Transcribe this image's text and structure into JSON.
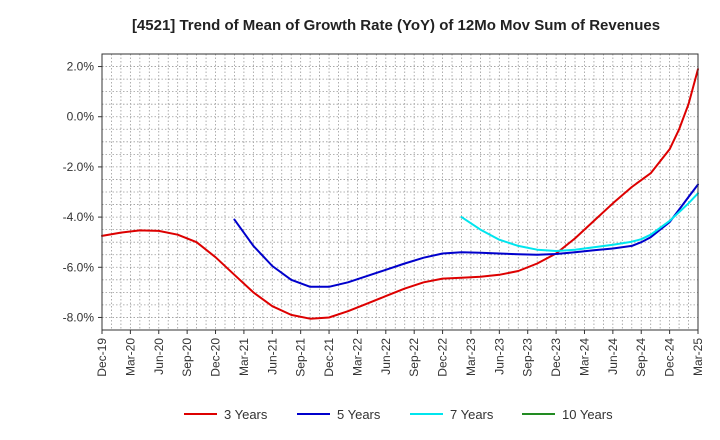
{
  "chart_data": {
    "type": "line",
    "title": "[4521]  Trend of Mean of Growth Rate (YoY) of 12Mo Mov Sum of Revenues",
    "xlabel": "",
    "ylabel": "",
    "x_ticks": [
      "Dec-19",
      "Mar-20",
      "Jun-20",
      "Sep-20",
      "Dec-20",
      "Mar-21",
      "Jun-21",
      "Sep-21",
      "Dec-21",
      "Mar-22",
      "Jun-22",
      "Sep-22",
      "Dec-22",
      "Mar-23",
      "Jun-23",
      "Sep-23",
      "Dec-23",
      "Mar-24",
      "Jun-24",
      "Sep-24",
      "Dec-24",
      "Mar-25"
    ],
    "y_ticks": [
      "2.0%",
      "0.0%",
      "-2.0%",
      "-4.0%",
      "-6.0%",
      "-8.0%"
    ],
    "y_tick_values": [
      2,
      0,
      -2,
      -4,
      -6,
      -8
    ],
    "ylim": [
      -8.5,
      2.5
    ],
    "x_range_months": [
      0,
      63
    ],
    "grid": true,
    "legend_position": "bottom",
    "series": [
      {
        "name": "3 Years",
        "color": "#dd0000",
        "x": [
          0,
          2,
          4,
          6,
          8,
          10,
          12,
          14,
          16,
          18,
          20,
          22,
          24,
          26,
          28,
          30,
          32,
          34,
          36,
          38,
          40,
          42,
          44,
          46,
          48,
          50,
          52,
          54,
          56,
          58,
          60,
          61,
          62,
          63
        ],
        "values": [
          -4.75,
          -4.62,
          -4.53,
          -4.55,
          -4.7,
          -5.0,
          -5.6,
          -6.3,
          -7.0,
          -7.55,
          -7.9,
          -8.05,
          -8.0,
          -7.75,
          -7.45,
          -7.15,
          -6.85,
          -6.6,
          -6.45,
          -6.42,
          -6.38,
          -6.3,
          -6.15,
          -5.85,
          -5.45,
          -4.85,
          -4.15,
          -3.45,
          -2.8,
          -2.25,
          -1.3,
          -0.5,
          0.5,
          1.9
        ]
      },
      {
        "name": "5 Years",
        "color": "#0000cc",
        "x": [
          14,
          16,
          18,
          20,
          22,
          24,
          26,
          28,
          30,
          32,
          34,
          36,
          38,
          40,
          42,
          44,
          46,
          48,
          50,
          52,
          54,
          56,
          57,
          58,
          60,
          61,
          62,
          63
        ],
        "values": [
          -4.1,
          -5.15,
          -5.95,
          -6.5,
          -6.78,
          -6.78,
          -6.6,
          -6.35,
          -6.1,
          -5.85,
          -5.62,
          -5.45,
          -5.4,
          -5.42,
          -5.45,
          -5.48,
          -5.5,
          -5.47,
          -5.4,
          -5.32,
          -5.25,
          -5.15,
          -5.0,
          -4.8,
          -4.2,
          -3.7,
          -3.2,
          -2.7
        ]
      },
      {
        "name": "7 Years",
        "color": "#00e5ee",
        "x": [
          38,
          40,
          42,
          44,
          46,
          48,
          50,
          52,
          54,
          56,
          57,
          58,
          60,
          61,
          62,
          63
        ],
        "values": [
          -4.0,
          -4.5,
          -4.9,
          -5.15,
          -5.3,
          -5.35,
          -5.3,
          -5.2,
          -5.1,
          -4.98,
          -4.88,
          -4.7,
          -4.15,
          -3.8,
          -3.45,
          -3.05
        ]
      },
      {
        "name": "10 Years",
        "color": "#228b22",
        "x": [],
        "values": []
      }
    ]
  }
}
